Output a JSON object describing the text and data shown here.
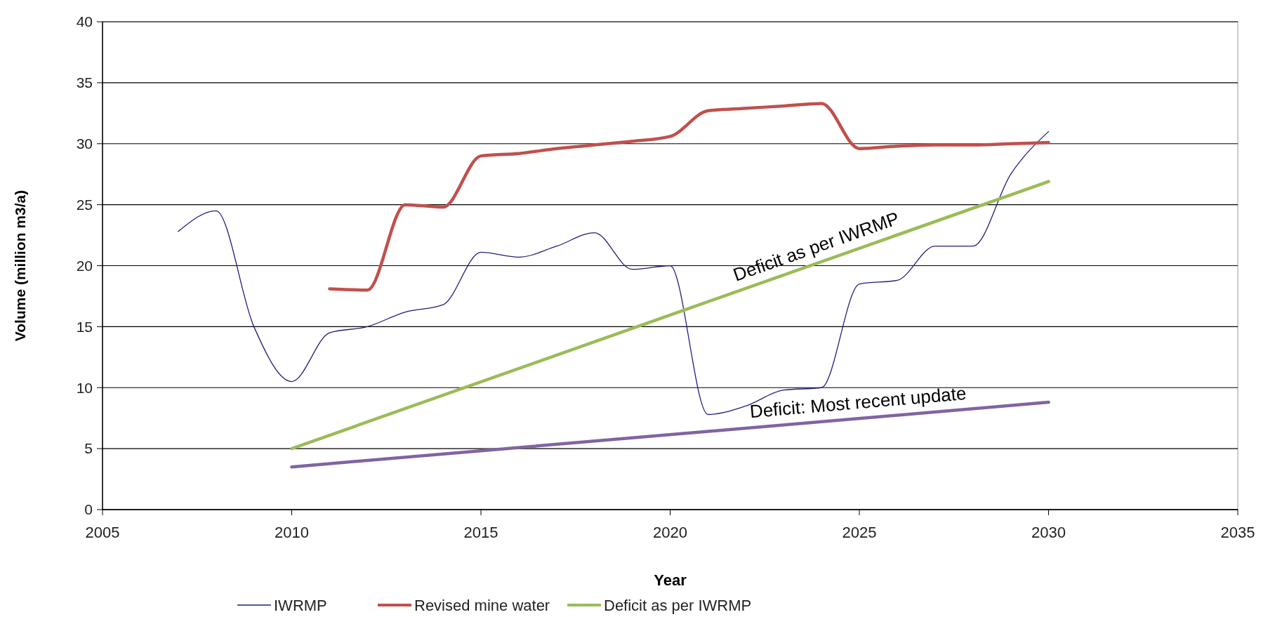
{
  "chart_data": {
    "type": "line",
    "xlabel": "Year",
    "ylabel": "Volume (million m3/a)",
    "xlim": [
      2005,
      2035
    ],
    "xticks": [
      2005,
      2010,
      2015,
      2020,
      2025,
      2030,
      2035
    ],
    "ylim": [
      0,
      40
    ],
    "yticks": [
      0,
      5,
      10,
      15,
      20,
      25,
      30,
      35,
      40
    ],
    "grid": "y",
    "legend": "bottom",
    "series": [
      {
        "name": "IWRMP",
        "color": "#1f1f7a",
        "x": [
          2007,
          2008,
          2009,
          2010,
          2011,
          2012,
          2013,
          2014,
          2015,
          2016,
          2017,
          2018,
          2019,
          2020,
          2021,
          2022,
          2023,
          2024,
          2025,
          2026,
          2027,
          2028,
          2029,
          2030
        ],
        "values": [
          22.8,
          24.5,
          15,
          10.5,
          14.5,
          15,
          16.2,
          16.8,
          21.1,
          20.7,
          21.6,
          22.7,
          19.7,
          20,
          7.8,
          8.5,
          9.8,
          10,
          18.5,
          18.8,
          21.6,
          21.6,
          27.5,
          31
        ]
      },
      {
        "name": "Revised mine water",
        "color": "#c0504d",
        "x": [
          2011,
          2012,
          2013,
          2014,
          2015,
          2016,
          2017,
          2018,
          2019,
          2020,
          2021,
          2022,
          2023,
          2024,
          2025,
          2026,
          2027,
          2028,
          2029,
          2030
        ],
        "values": [
          18.1,
          18,
          25,
          24.8,
          29,
          29.2,
          29.6,
          29.9,
          30.2,
          30.6,
          32.7,
          32.9,
          33.1,
          33.3,
          29.6,
          29.8,
          29.9,
          29.9,
          30,
          30.1
        ]
      },
      {
        "name": "Deficit as per IWRMP",
        "color": "#9bbb59",
        "x": [
          2010,
          2030
        ],
        "values": [
          5,
          26.9
        ]
      },
      {
        "color": "#8064a2",
        "x": [
          2010,
          2030
        ],
        "values": [
          3.5,
          8.8
        ]
      }
    ],
    "annotations": [
      {
        "text": "Deficit as per IWRMP",
        "x": 2024,
        "y": 20.33
      },
      {
        "text": "Deficit: Most recent  update",
        "x": 2025,
        "y": 7.48
      }
    ]
  }
}
